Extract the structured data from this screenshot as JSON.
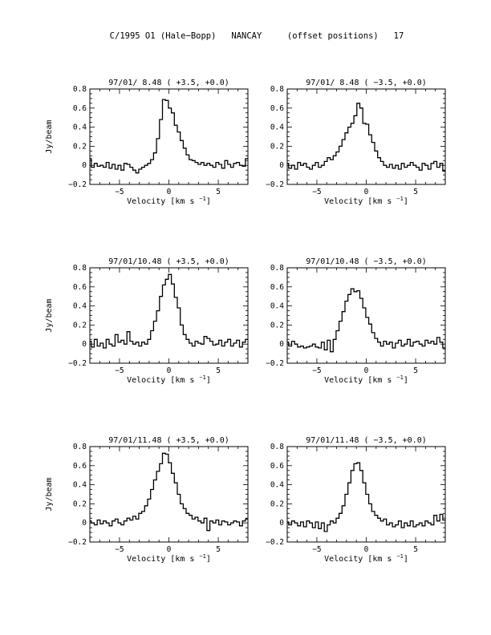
{
  "page": {
    "title": "C/1995 O1 (Hale−Bopp)   NANCAY     (offset positions)   17"
  },
  "chart_data": [
    {
      "type": "line",
      "title": "97/01/ 8.48  ( +3.5, +0.0)",
      "xlabel": "Velocity [km s",
      "xlabel_sup": "−1",
      "xlabel_close": "]",
      "ylabel": "Jy/beam",
      "xlim": [
        -8,
        8
      ],
      "ylim": [
        -0.2,
        0.8
      ],
      "xticks": [
        {
          "v": -5,
          "label": "−5"
        },
        {
          "v": 0,
          "label": "0"
        },
        {
          "v": 5,
          "label": "5"
        }
      ],
      "yticks": [
        {
          "v": -0.2,
          "label": "−0.2"
        },
        {
          "v": 0,
          "label": "0"
        },
        {
          "v": 0.2,
          "label": "0.2"
        },
        {
          "v": 0.4,
          "label": "0.4"
        },
        {
          "v": 0.6,
          "label": "0.6"
        },
        {
          "v": 0.8,
          "label": "0.8"
        }
      ],
      "series": [
        {
          "x": [
            -8.0,
            -7.7,
            -7.4,
            -7.1,
            -6.8,
            -6.5,
            -6.2,
            -5.9,
            -5.6,
            -5.3,
            -5.0,
            -4.7,
            -4.4,
            -4.1,
            -3.8,
            -3.5,
            -3.2,
            -2.9,
            -2.6,
            -2.3,
            -2.0,
            -1.7,
            -1.4,
            -1.1,
            -0.8,
            -0.5,
            -0.2,
            0.1,
            0.4,
            0.7,
            1.0,
            1.3,
            1.6,
            1.9,
            2.2,
            2.5,
            2.8,
            3.1,
            3.4,
            3.7,
            4.0,
            4.3,
            4.6,
            4.9,
            5.2,
            5.5,
            5.8,
            6.1,
            6.4,
            6.7,
            7.0,
            7.3,
            7.6,
            7.9
          ],
          "y": [
            0.07,
            -0.02,
            0.02,
            -0.01,
            0.0,
            -0.02,
            0.03,
            -0.03,
            0.01,
            -0.04,
            0.0,
            -0.05,
            0.02,
            0.01,
            -0.02,
            -0.05,
            -0.08,
            -0.04,
            -0.02,
            0.0,
            0.02,
            0.06,
            0.13,
            0.28,
            0.48,
            0.69,
            0.68,
            0.6,
            0.55,
            0.42,
            0.35,
            0.26,
            0.18,
            0.11,
            0.06,
            0.05,
            0.03,
            0.01,
            0.03,
            0.0,
            0.02,
            0.0,
            -0.02,
            0.03,
            0.01,
            -0.03,
            0.05,
            0.01,
            -0.02,
            0.02,
            0.03,
            0.0,
            -0.01,
            0.07
          ]
        }
      ]
    },
    {
      "type": "line",
      "title": "97/01/ 8.48  ( −3.5, +0.0)",
      "xlabel": "Velocity [km s",
      "xlabel_sup": "−1",
      "xlabel_close": "]",
      "ylabel": "",
      "xlim": [
        -8,
        8
      ],
      "ylim": [
        -0.2,
        0.8
      ],
      "xticks": [
        {
          "v": -5,
          "label": "−5"
        },
        {
          "v": 0,
          "label": "0"
        },
        {
          "v": 5,
          "label": "5"
        }
      ],
      "yticks": [
        {
          "v": -0.2,
          "label": "−0.2"
        },
        {
          "v": 0,
          "label": "0"
        },
        {
          "v": 0.2,
          "label": "0.2"
        },
        {
          "v": 0.4,
          "label": "0.4"
        },
        {
          "v": 0.6,
          "label": "0.6"
        },
        {
          "v": 0.8,
          "label": "0.8"
        }
      ],
      "series": [
        {
          "x": [
            -8.0,
            -7.7,
            -7.4,
            -7.1,
            -6.8,
            -6.5,
            -6.2,
            -5.9,
            -5.6,
            -5.3,
            -5.0,
            -4.7,
            -4.4,
            -4.1,
            -3.8,
            -3.5,
            -3.2,
            -2.9,
            -2.6,
            -2.3,
            -2.0,
            -1.7,
            -1.4,
            -1.1,
            -0.8,
            -0.5,
            -0.2,
            0.1,
            0.4,
            0.7,
            1.0,
            1.3,
            1.6,
            1.9,
            2.2,
            2.5,
            2.8,
            3.1,
            3.4,
            3.7,
            4.0,
            4.3,
            4.6,
            4.9,
            5.2,
            5.5,
            5.8,
            6.1,
            6.4,
            6.7,
            7.0,
            7.3,
            7.6,
            7.9
          ],
          "y": [
            0.02,
            -0.03,
            0.0,
            -0.04,
            0.03,
            0.0,
            0.02,
            -0.02,
            -0.04,
            0.0,
            0.03,
            -0.02,
            0.0,
            0.04,
            0.08,
            0.06,
            0.1,
            0.14,
            0.2,
            0.27,
            0.34,
            0.4,
            0.44,
            0.52,
            0.65,
            0.6,
            0.44,
            0.43,
            0.32,
            0.24,
            0.15,
            0.08,
            0.04,
            0.0,
            -0.02,
            0.01,
            -0.03,
            0.0,
            -0.04,
            0.02,
            -0.02,
            0.0,
            0.03,
            0.0,
            -0.02,
            -0.05,
            0.02,
            0.0,
            -0.04,
            0.02,
            0.04,
            -0.02,
            0.02,
            -0.06
          ]
        }
      ]
    },
    {
      "type": "line",
      "title": "97/01/10.48  ( +3.5, +0.0)",
      "xlabel": "Velocity [km s",
      "xlabel_sup": "−1",
      "xlabel_close": "]",
      "ylabel": "Jy/beam",
      "xlim": [
        -8,
        8
      ],
      "ylim": [
        -0.2,
        0.8
      ],
      "xticks": [
        {
          "v": -5,
          "label": "−5"
        },
        {
          "v": 0,
          "label": "0"
        },
        {
          "v": 5,
          "label": "5"
        }
      ],
      "yticks": [
        {
          "v": -0.2,
          "label": "−0.2"
        },
        {
          "v": 0,
          "label": "0"
        },
        {
          "v": 0.2,
          "label": "0.2"
        },
        {
          "v": 0.4,
          "label": "0.4"
        },
        {
          "v": 0.6,
          "label": "0.6"
        },
        {
          "v": 0.8,
          "label": "0.8"
        }
      ],
      "series": [
        {
          "x": [
            -8.0,
            -7.7,
            -7.4,
            -7.1,
            -6.8,
            -6.5,
            -6.2,
            -5.9,
            -5.6,
            -5.3,
            -5.0,
            -4.7,
            -4.4,
            -4.1,
            -3.8,
            -3.5,
            -3.2,
            -2.9,
            -2.6,
            -2.3,
            -2.0,
            -1.7,
            -1.4,
            -1.1,
            -0.8,
            -0.5,
            -0.2,
            0.1,
            0.4,
            0.7,
            1.0,
            1.3,
            1.6,
            1.9,
            2.2,
            2.5,
            2.8,
            3.1,
            3.4,
            3.7,
            4.0,
            4.3,
            4.6,
            4.9,
            5.2,
            5.5,
            5.8,
            6.1,
            6.4,
            6.7,
            7.0,
            7.3,
            7.6,
            7.9
          ],
          "y": [
            0.03,
            -0.03,
            0.05,
            -0.02,
            0.01,
            -0.04,
            0.05,
            0.0,
            -0.02,
            0.1,
            0.02,
            0.04,
            0.0,
            0.13,
            0.03,
            0.0,
            0.02,
            -0.02,
            0.02,
            0.0,
            0.05,
            0.14,
            0.24,
            0.35,
            0.5,
            0.62,
            0.68,
            0.73,
            0.63,
            0.49,
            0.38,
            0.2,
            0.1,
            0.05,
            0.01,
            -0.02,
            0.03,
            0.01,
            0.0,
            0.08,
            0.06,
            0.03,
            -0.01,
            0.0,
            0.04,
            -0.02,
            0.02,
            0.05,
            -0.02,
            0.01,
            0.04,
            -0.03,
            0.02,
            0.05
          ]
        }
      ]
    },
    {
      "type": "line",
      "title": "97/01/10.48  ( −3.5, +0.0)",
      "xlabel": "Velocity [km s",
      "xlabel_sup": "−1",
      "xlabel_close": "]",
      "ylabel": "",
      "xlim": [
        -8,
        8
      ],
      "ylim": [
        -0.2,
        0.8
      ],
      "xticks": [
        {
          "v": -5,
          "label": "−5"
        },
        {
          "v": 0,
          "label": "0"
        },
        {
          "v": 5,
          "label": "5"
        }
      ],
      "yticks": [
        {
          "v": -0.2,
          "label": "−0.2"
        },
        {
          "v": 0,
          "label": "0"
        },
        {
          "v": 0.2,
          "label": "0.2"
        },
        {
          "v": 0.4,
          "label": "0.4"
        },
        {
          "v": 0.6,
          "label": "0.6"
        },
        {
          "v": 0.8,
          "label": "0.8"
        }
      ],
      "series": [
        {
          "x": [
            -8.0,
            -7.7,
            -7.4,
            -7.1,
            -6.8,
            -6.5,
            -6.2,
            -5.9,
            -5.6,
            -5.3,
            -5.0,
            -4.7,
            -4.4,
            -4.1,
            -3.8,
            -3.5,
            -3.2,
            -2.9,
            -2.6,
            -2.3,
            -2.0,
            -1.7,
            -1.4,
            -1.1,
            -0.8,
            -0.5,
            -0.2,
            0.1,
            0.4,
            0.7,
            1.0,
            1.3,
            1.6,
            1.9,
            2.2,
            2.5,
            2.8,
            3.1,
            3.4,
            3.7,
            4.0,
            4.3,
            4.6,
            4.9,
            5.2,
            5.5,
            5.8,
            6.1,
            6.4,
            6.7,
            7.0,
            7.3,
            7.6,
            7.9
          ],
          "y": [
            0.02,
            -0.02,
            0.03,
            0.0,
            -0.03,
            -0.02,
            -0.04,
            -0.03,
            -0.02,
            0.0,
            -0.03,
            -0.04,
            0.02,
            -0.06,
            0.04,
            -0.08,
            0.05,
            0.14,
            0.24,
            0.34,
            0.45,
            0.52,
            0.58,
            0.55,
            0.56,
            0.48,
            0.38,
            0.28,
            0.21,
            0.12,
            0.06,
            0.02,
            -0.02,
            0.03,
            0.0,
            0.02,
            -0.04,
            0.01,
            0.04,
            -0.02,
            0.0,
            0.05,
            -0.02,
            0.02,
            0.03,
            0.0,
            -0.02,
            0.04,
            0.01,
            0.03,
            0.0,
            0.07,
            0.02,
            -0.04
          ]
        }
      ]
    },
    {
      "type": "line",
      "title": "97/01/11.48  ( +3.5, +0.0)",
      "xlabel": "Velocity [km s",
      "xlabel_sup": "−1",
      "xlabel_close": "]",
      "ylabel": "Jy/beam",
      "xlim": [
        -8,
        8
      ],
      "ylim": [
        -0.2,
        0.8
      ],
      "xticks": [
        {
          "v": -5,
          "label": "−5"
        },
        {
          "v": 0,
          "label": "0"
        },
        {
          "v": 5,
          "label": "5"
        }
      ],
      "yticks": [
        {
          "v": -0.2,
          "label": "−0.2"
        },
        {
          "v": 0,
          "label": "0"
        },
        {
          "v": 0.2,
          "label": "0.2"
        },
        {
          "v": 0.4,
          "label": "0.4"
        },
        {
          "v": 0.6,
          "label": "0.6"
        },
        {
          "v": 0.8,
          "label": "0.8"
        }
      ],
      "series": [
        {
          "x": [
            -8.0,
            -7.7,
            -7.4,
            -7.1,
            -6.8,
            -6.5,
            -6.2,
            -5.9,
            -5.6,
            -5.3,
            -5.0,
            -4.7,
            -4.4,
            -4.1,
            -3.8,
            -3.5,
            -3.2,
            -2.9,
            -2.6,
            -2.3,
            -2.0,
            -1.7,
            -1.4,
            -1.1,
            -0.8,
            -0.5,
            -0.2,
            0.1,
            0.4,
            0.7,
            1.0,
            1.3,
            1.6,
            1.9,
            2.2,
            2.5,
            2.8,
            3.1,
            3.4,
            3.7,
            4.0,
            4.3,
            4.6,
            4.9,
            5.2,
            5.5,
            5.8,
            6.1,
            6.4,
            6.7,
            7.0,
            7.3,
            7.6,
            7.9
          ],
          "y": [
            0.02,
            0.0,
            -0.02,
            0.03,
            -0.01,
            0.02,
            0.0,
            -0.03,
            0.02,
            0.04,
            0.0,
            -0.02,
            0.02,
            0.05,
            0.03,
            0.07,
            0.04,
            0.1,
            0.12,
            0.18,
            0.25,
            0.35,
            0.45,
            0.54,
            0.62,
            0.73,
            0.72,
            0.63,
            0.52,
            0.42,
            0.3,
            0.2,
            0.15,
            0.1,
            0.08,
            0.04,
            0.06,
            0.02,
            0.0,
            0.05,
            -0.08,
            0.02,
            0.0,
            0.03,
            -0.02,
            0.02,
            0.01,
            -0.02,
            0.0,
            0.02,
            0.01,
            -0.03,
            0.02,
            0.04
          ]
        }
      ]
    },
    {
      "type": "line",
      "title": "97/01/11.48  ( −3.5, +0.0)",
      "xlabel": "Velocity [km s",
      "xlabel_sup": "−1",
      "xlabel_close": "]",
      "ylabel": "",
      "xlim": [
        -8,
        8
      ],
      "ylim": [
        -0.2,
        0.8
      ],
      "xticks": [
        {
          "v": -5,
          "label": "−5"
        },
        {
          "v": 0,
          "label": "0"
        },
        {
          "v": 5,
          "label": "5"
        }
      ],
      "yticks": [
        {
          "v": -0.2,
          "label": "−0.2"
        },
        {
          "v": 0,
          "label": "0"
        },
        {
          "v": 0.2,
          "label": "0.2"
        },
        {
          "v": 0.4,
          "label": "0.4"
        },
        {
          "v": 0.6,
          "label": "0.6"
        },
        {
          "v": 0.8,
          "label": "0.8"
        }
      ],
      "series": [
        {
          "x": [
            -8.0,
            -7.7,
            -7.4,
            -7.1,
            -6.8,
            -6.5,
            -6.2,
            -5.9,
            -5.6,
            -5.3,
            -5.0,
            -4.7,
            -4.4,
            -4.1,
            -3.8,
            -3.5,
            -3.2,
            -2.9,
            -2.6,
            -2.3,
            -2.0,
            -1.7,
            -1.4,
            -1.1,
            -0.8,
            -0.5,
            -0.2,
            0.1,
            0.4,
            0.7,
            1.0,
            1.3,
            1.6,
            1.9,
            2.2,
            2.5,
            2.8,
            3.1,
            3.4,
            3.7,
            4.0,
            4.3,
            4.6,
            4.9,
            5.2,
            5.5,
            5.8,
            6.1,
            6.4,
            6.7,
            7.0,
            7.3,
            7.6,
            7.9
          ],
          "y": [
            0.01,
            -0.02,
            0.02,
            0.0,
            -0.03,
            0.01,
            -0.04,
            0.02,
            0.0,
            -0.05,
            0.01,
            -0.06,
            0.0,
            -0.09,
            -0.02,
            0.02,
            0.0,
            0.05,
            0.1,
            0.18,
            0.3,
            0.42,
            0.55,
            0.62,
            0.63,
            0.55,
            0.42,
            0.3,
            0.2,
            0.12,
            0.08,
            0.05,
            0.02,
            0.04,
            -0.02,
            0.0,
            -0.04,
            -0.02,
            0.02,
            -0.05,
            0.0,
            -0.03,
            0.02,
            -0.04,
            -0.02,
            0.0,
            -0.03,
            0.02,
            0.0,
            -0.02,
            0.08,
            0.02,
            0.09,
            0.03
          ]
        }
      ]
    }
  ]
}
